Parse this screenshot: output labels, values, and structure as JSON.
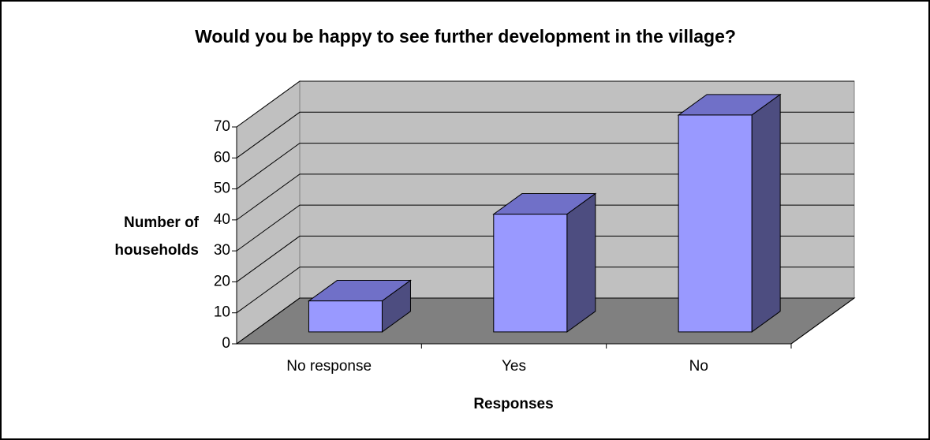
{
  "chart_data": {
    "type": "bar3d",
    "title": "Would you be happy to see further development in the village?",
    "x_label": "Responses",
    "y_label": "Number of households",
    "categories": [
      "No response",
      "Yes",
      "No"
    ],
    "values": [
      10,
      38,
      70
    ],
    "color": "#9999ff",
    "ylim": [
      0,
      70
    ],
    "yticks": [
      0,
      10,
      20,
      30,
      40,
      50,
      60,
      70
    ],
    "grid": true
  }
}
